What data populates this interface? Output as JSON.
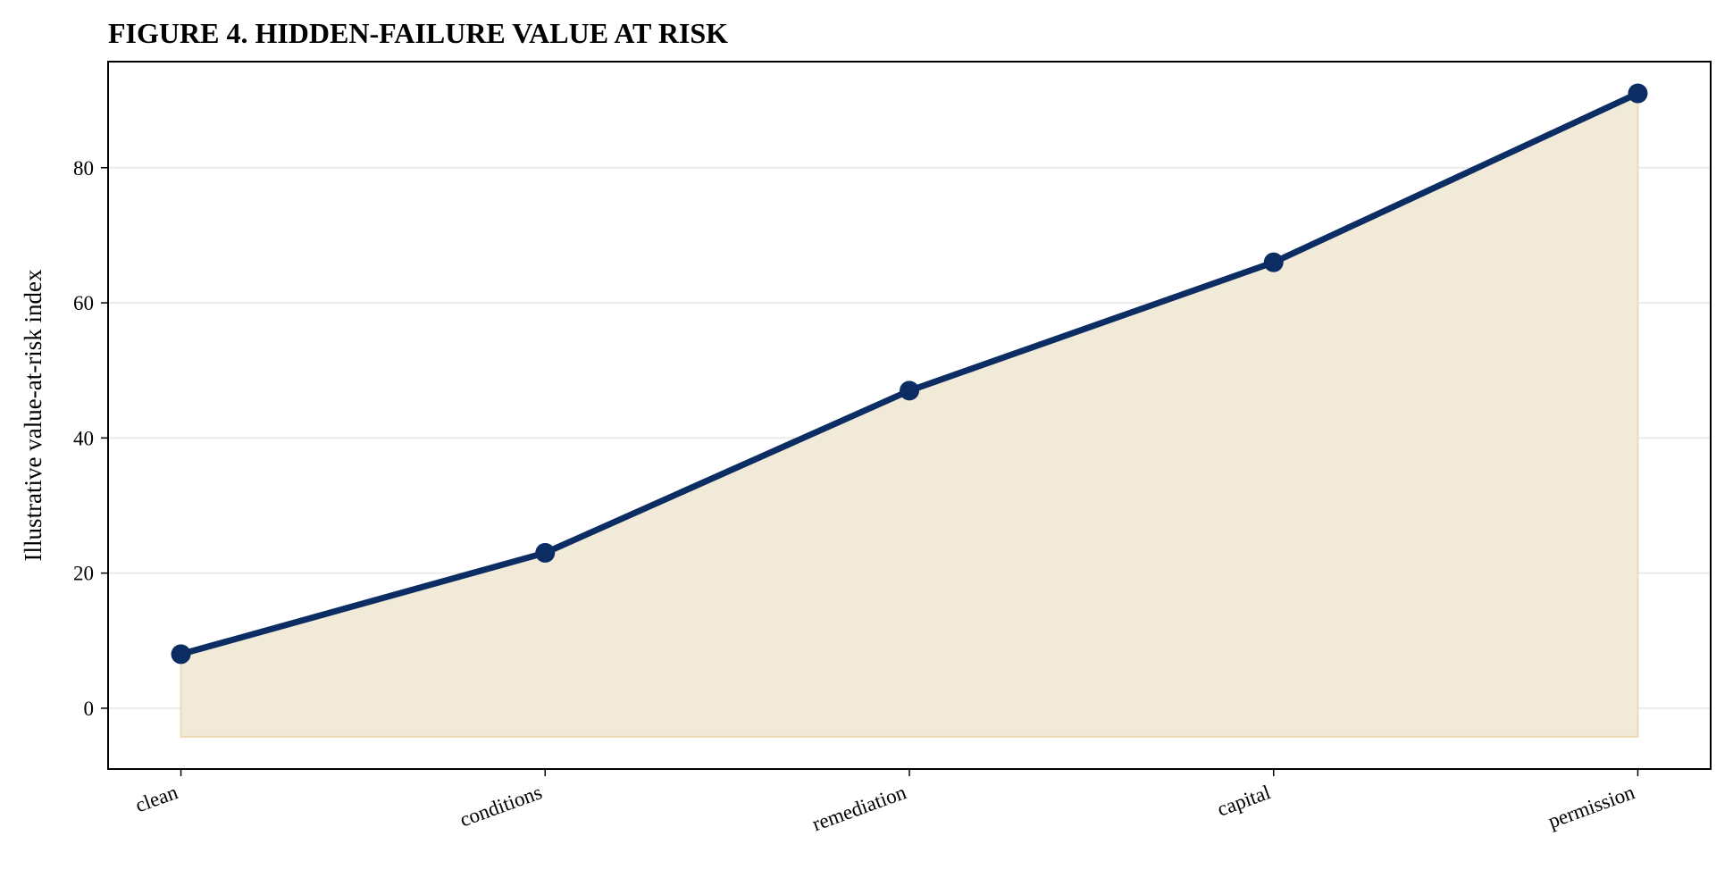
{
  "chart_data": {
    "type": "line",
    "title": "FIGURE 4. HIDDEN-FAILURE VALUE AT RISK",
    "y_label": "Illustrative value-at-risk index",
    "categories": [
      "clean",
      "conditions",
      "remediation",
      "capital",
      "permission"
    ],
    "series": [
      {
        "name": "Illustrative value-at-risk index",
        "color": "#0b2d63",
        "values": [
          8,
          23,
          47,
          66,
          91
        ]
      }
    ],
    "fill_color": "#f2ead8",
    "ylim": [
      -9,
      95.7
    ],
    "yticks": [
      0,
      20,
      40,
      60,
      80
    ],
    "grid": true
  }
}
